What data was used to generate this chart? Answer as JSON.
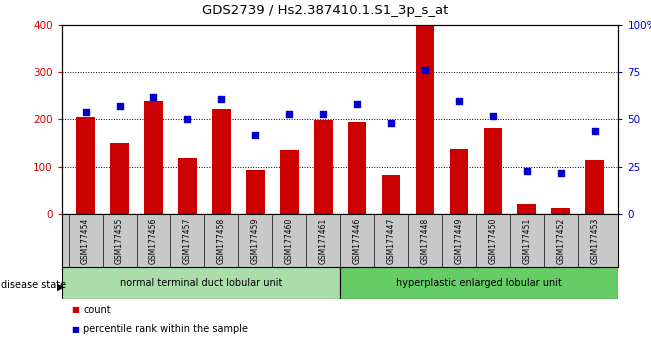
{
  "title": "GDS2739 / Hs2.387410.1.S1_3p_s_at",
  "categories": [
    "GSM177454",
    "GSM177455",
    "GSM177456",
    "GSM177457",
    "GSM177458",
    "GSM177459",
    "GSM177460",
    "GSM177461",
    "GSM177446",
    "GSM177447",
    "GSM177448",
    "GSM177449",
    "GSM177450",
    "GSM177451",
    "GSM177452",
    "GSM177453"
  ],
  "counts": [
    205,
    150,
    240,
    118,
    222,
    93,
    135,
    198,
    195,
    82,
    400,
    137,
    183,
    22,
    12,
    115
  ],
  "percentiles": [
    54,
    57,
    62,
    50,
    61,
    42,
    53,
    53,
    58,
    48,
    76,
    60,
    52,
    23,
    22,
    44
  ],
  "group1_label": "normal terminal duct lobular unit",
  "group2_label": "hyperplastic enlarged lobular unit",
  "group1_count": 8,
  "group2_count": 8,
  "bar_color": "#cc0000",
  "dot_color": "#0000cc",
  "left_ylim": [
    0,
    400
  ],
  "right_ylim": [
    0,
    100
  ],
  "left_yticks": [
    0,
    100,
    200,
    300,
    400
  ],
  "right_yticks": [
    0,
    25,
    50,
    75,
    100
  ],
  "right_yticklabels": [
    "0",
    "25",
    "50",
    "75",
    "100%"
  ],
  "disease_state_label": "disease state",
  "group1_color": "#aaddaa",
  "group2_color": "#66cc66",
  "tick_area_color": "#c8c8c8",
  "legend_count_label": "count",
  "legend_pct_label": "percentile rank within the sample"
}
